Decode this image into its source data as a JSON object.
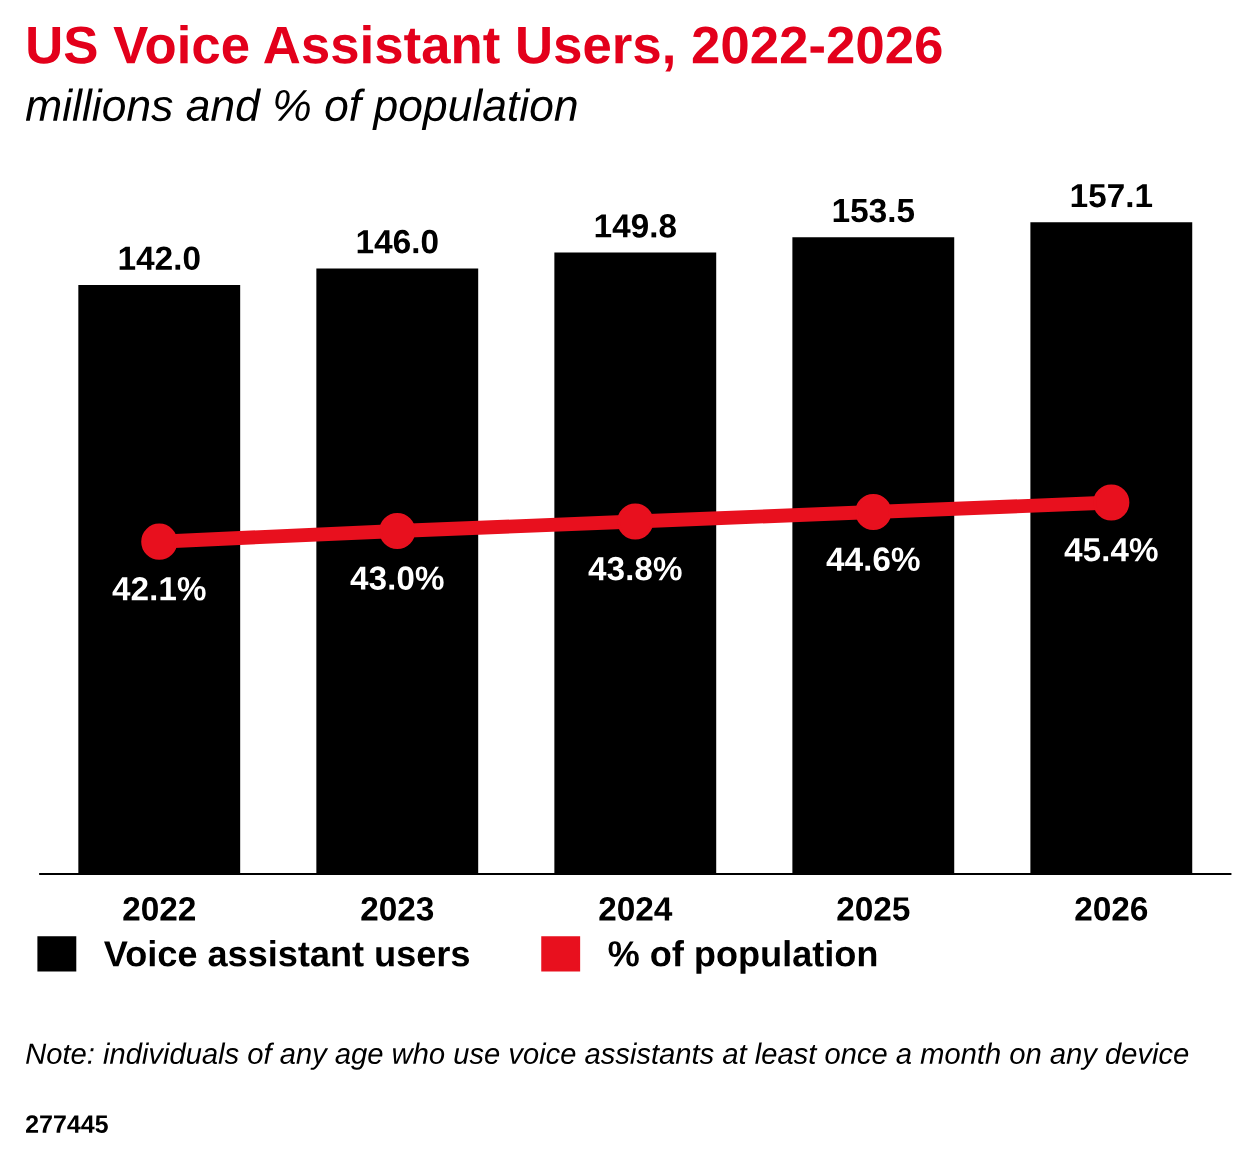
{
  "chart_data": {
    "type": "bar",
    "title": "US Voice Assistant Users, 2022-2026",
    "subtitle": "millions and % of population",
    "categories": [
      "2022",
      "2023",
      "2024",
      "2025",
      "2026"
    ],
    "series": [
      {
        "name": "Voice assistant users",
        "color": "#000000",
        "values": [
          142.0,
          146.0,
          149.8,
          153.5,
          157.1
        ],
        "value_labels": [
          "142.0",
          "146.0",
          "149.8",
          "153.5",
          "157.1"
        ]
      },
      {
        "name": "% of population",
        "type": "line",
        "axis": "y2",
        "color": "#e8101e",
        "marker": "circle",
        "values": [
          42.1,
          43.0,
          43.8,
          44.6,
          45.4
        ],
        "value_labels": [
          "42.1%",
          "43.0%",
          "43.8%",
          "44.6%",
          "45.4%"
        ]
      }
    ],
    "data_labels": true,
    "tick_labels": "x",
    "grid": false,
    "legend": "bottom",
    "annotations": [
      "Note: individuals of any age who use voice assistants at least once a month on any device",
      "277445"
    ]
  }
}
